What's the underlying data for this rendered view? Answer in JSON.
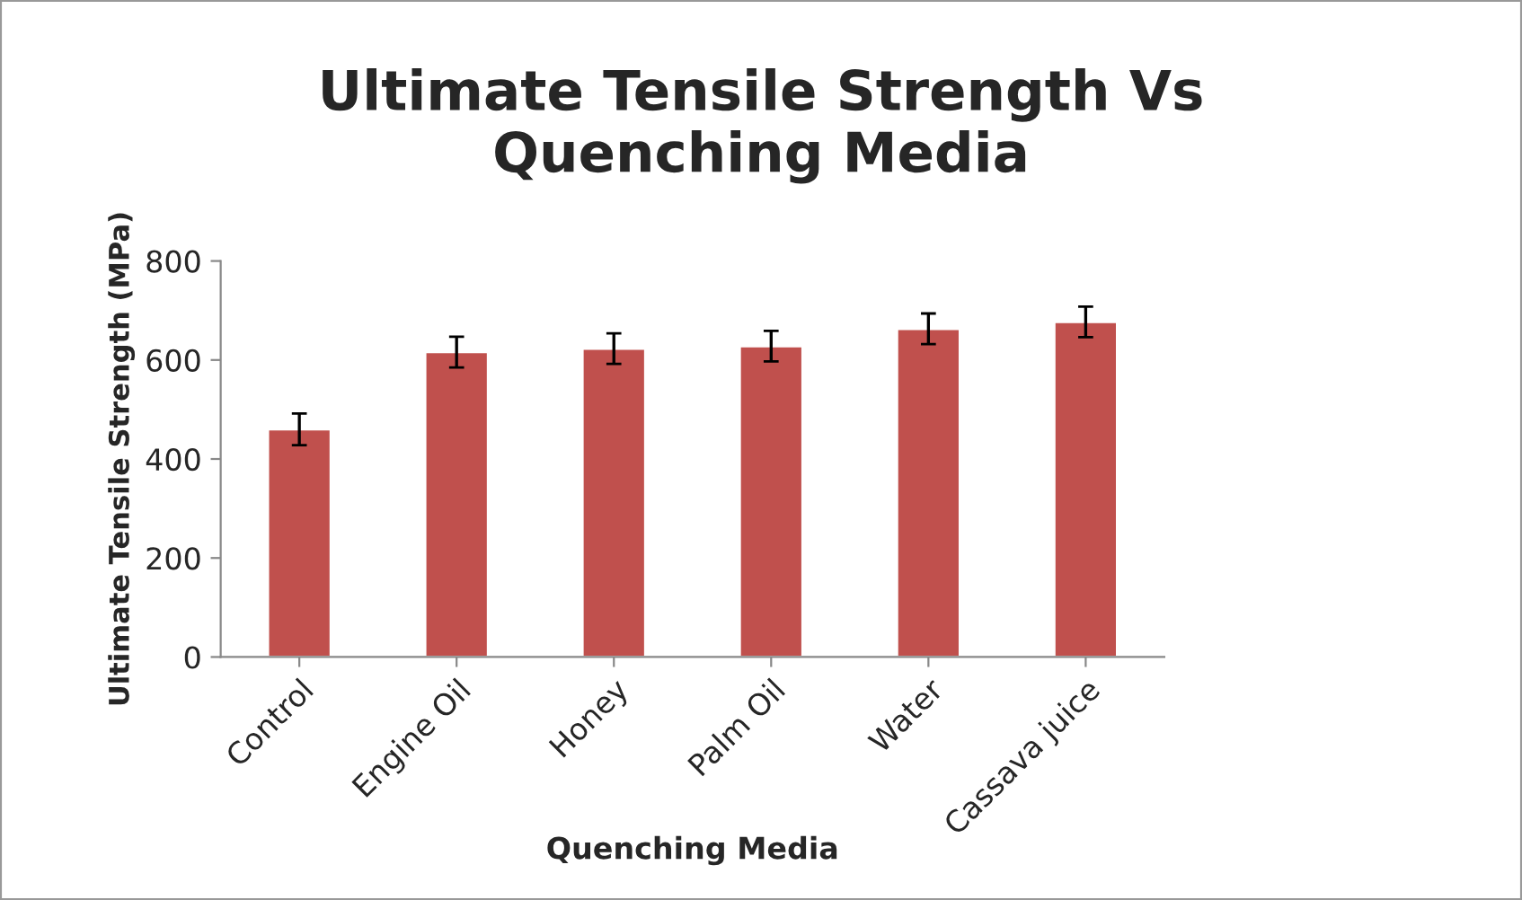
{
  "chart_data": {
    "type": "bar",
    "title": "Ultimate Tensile Strength Vs\nQuenching Media",
    "xlabel": "Quenching Media",
    "ylabel": "Ultimate Tensile Strength (MPa)",
    "categories": [
      "Control",
      "Engine Oil",
      "Honey",
      "Palm Oil",
      "Water",
      "Cassava juice"
    ],
    "values": [
      460,
      616,
      623,
      628,
      663,
      677
    ],
    "errors": [
      32,
      31,
      31,
      31,
      31,
      31
    ],
    "color": "#c0504d",
    "ylim": [
      0,
      800
    ],
    "yticks": [
      0,
      200,
      400,
      600,
      800
    ],
    "grid": false
  }
}
